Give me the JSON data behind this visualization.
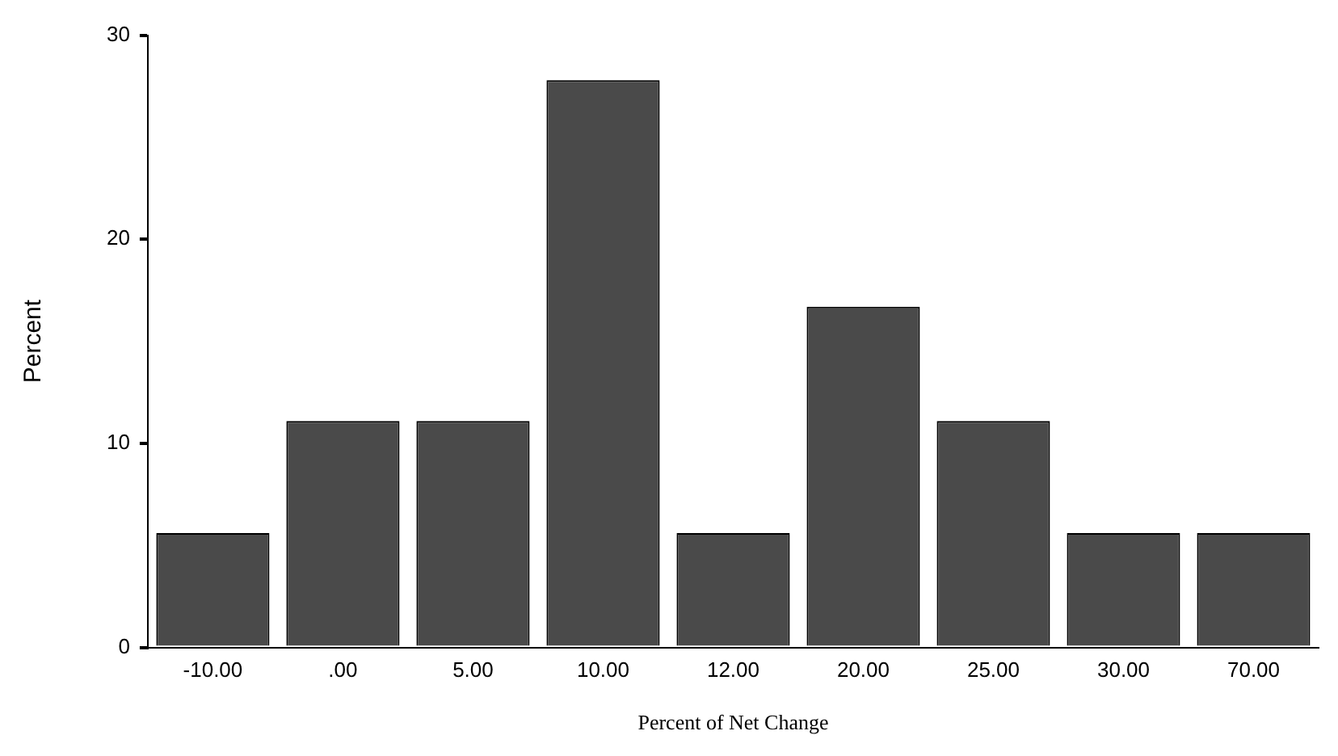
{
  "chart_data": {
    "type": "bar",
    "xlabel": "Percent of Net Change",
    "ylabel": "Percent",
    "categories": [
      "-10.00",
      ".00",
      "5.00",
      "10.00",
      "12.00",
      "20.00",
      "25.00",
      "30.00",
      "70.00"
    ],
    "values": [
      5.6,
      11.1,
      11.1,
      27.8,
      5.6,
      16.7,
      11.1,
      5.6,
      5.6
    ],
    "color": "#4a4a4a",
    "ylim": [
      0,
      30
    ],
    "yticks": [
      0,
      10,
      20,
      30
    ],
    "grid": false,
    "legend": false
  }
}
